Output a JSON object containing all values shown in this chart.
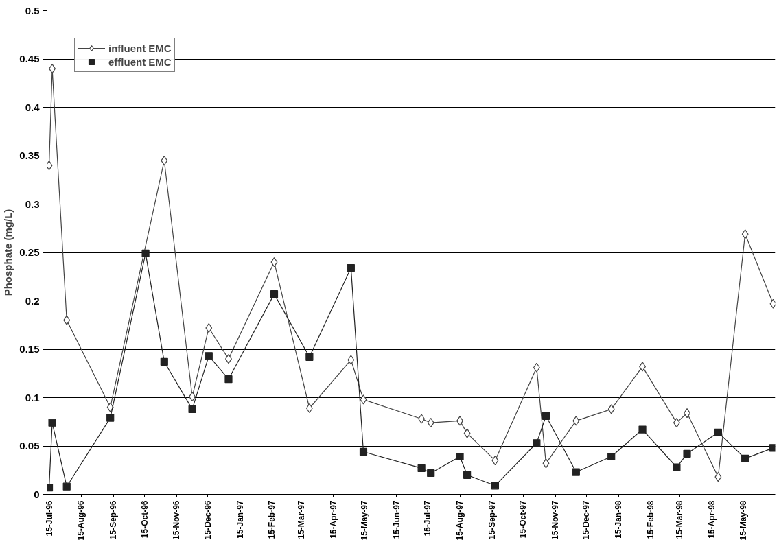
{
  "chart_data": {
    "type": "line",
    "ylabel": "Phosphate (mg/L)",
    "xlim": [
      "1996-07-13",
      "1998-06-15"
    ],
    "xticks": [
      {
        "value": "1996-07-15",
        "label": "15-Jul-96"
      },
      {
        "value": "1996-08-15",
        "label": "15-Aug-96"
      },
      {
        "value": "1996-09-15",
        "label": "15-Sep-96"
      },
      {
        "value": "1996-10-15",
        "label": "15-Oct-96"
      },
      {
        "value": "1996-11-15",
        "label": "15-Nov-96"
      },
      {
        "value": "1996-12-15",
        "label": "15-Dec-96"
      },
      {
        "value": "1997-01-15",
        "label": "15-Jan-97"
      },
      {
        "value": "1997-02-15",
        "label": "15-Feb-97"
      },
      {
        "value": "1997-03-15",
        "label": "15-Mar-97"
      },
      {
        "value": "1997-04-15",
        "label": "15-Apr-97"
      },
      {
        "value": "1997-05-15",
        "label": "15-May-97"
      },
      {
        "value": "1997-06-15",
        "label": "15-Jun-97"
      },
      {
        "value": "1997-07-15",
        "label": "15-Jul-97"
      },
      {
        "value": "1997-08-15",
        "label": "15-Aug-97"
      },
      {
        "value": "1997-09-15",
        "label": "15-Sep-97"
      },
      {
        "value": "1997-10-15",
        "label": "15-Oct-97"
      },
      {
        "value": "1997-11-15",
        "label": "15-Nov-97"
      },
      {
        "value": "1997-12-15",
        "label": "15-Dec-97"
      },
      {
        "value": "1998-01-15",
        "label": "15-Jan-98"
      },
      {
        "value": "1998-02-15",
        "label": "15-Feb-98"
      },
      {
        "value": "1998-03-15",
        "label": "15-Mar-98"
      },
      {
        "value": "1998-04-15",
        "label": "15-Apr-98"
      },
      {
        "value": "1998-05-15",
        "label": "15-May-98"
      }
    ],
    "ylim": [
      0,
      0.5
    ],
    "yticks": [
      0,
      0.05,
      0.1,
      0.15,
      0.2,
      0.25,
      0.3,
      0.35,
      0.4,
      0.45,
      0.5
    ],
    "grid": "y",
    "legend": "top left",
    "line_style": "solid",
    "series": [
      {
        "name": "influent EMC",
        "color": "#444444",
        "marker": "diamond",
        "x": [
          "1996-07-15",
          "1996-07-18",
          "1996-08-01",
          "1996-09-12",
          "1996-11-03",
          "1996-11-30",
          "1996-12-16",
          "1997-01-04",
          "1997-02-17",
          "1997-03-23",
          "1997-05-02",
          "1997-05-14",
          "1997-07-09",
          "1997-07-18",
          "1997-08-15",
          "1997-08-22",
          "1997-09-18",
          "1997-10-28",
          "1997-11-06",
          "1997-12-05",
          "1998-01-08",
          "1998-02-07",
          "1998-03-12",
          "1998-03-22",
          "1998-04-21",
          "1998-05-17",
          "1998-06-13"
        ],
        "values": [
          0.34,
          0.44,
          0.18,
          0.09,
          0.345,
          0.101,
          0.172,
          0.14,
          0.24,
          0.089,
          0.139,
          0.098,
          0.078,
          0.074,
          0.076,
          0.063,
          0.035,
          0.131,
          0.032,
          0.076,
          0.088,
          0.132,
          0.074,
          0.084,
          0.018,
          0.269,
          0.197
        ]
      },
      {
        "name": "effluent EMC",
        "color": "#222222",
        "marker": "square",
        "x": [
          "1996-07-15",
          "1996-07-18",
          "1996-08-01",
          "1996-09-12",
          "1996-10-16",
          "1996-11-03",
          "1996-11-30",
          "1996-12-16",
          "1997-01-04",
          "1997-02-17",
          "1997-03-23",
          "1997-05-02",
          "1997-05-14",
          "1997-07-09",
          "1997-07-18",
          "1997-08-15",
          "1997-08-22",
          "1997-09-18",
          "1997-10-28",
          "1997-11-06",
          "1997-12-05",
          "1998-01-08",
          "1998-02-07",
          "1998-03-12",
          "1998-03-22",
          "1998-04-21",
          "1998-05-17",
          "1998-06-13"
        ],
        "values": [
          0.007,
          0.074,
          0.008,
          0.079,
          0.249,
          0.137,
          0.088,
          0.143,
          0.119,
          0.207,
          0.142,
          0.234,
          0.044,
          0.027,
          0.022,
          0.039,
          0.02,
          0.009,
          0.053,
          0.081,
          0.023,
          0.039,
          0.067,
          0.028,
          0.042,
          0.064,
          0.037,
          0.048
        ]
      }
    ]
  }
}
